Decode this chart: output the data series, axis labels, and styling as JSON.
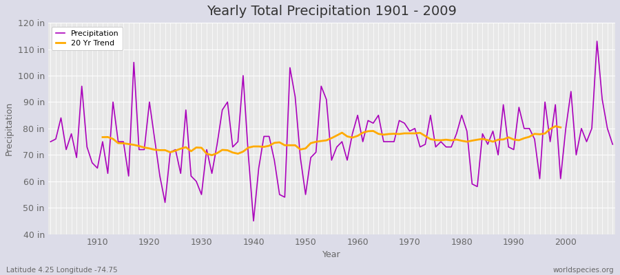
{
  "title": "Yearly Total Precipitation 1901 - 2009",
  "xlabel": "Year",
  "ylabel": "Precipitation",
  "subtitle": "Latitude 4.25 Longitude -74.75",
  "watermark": "worldspecies.org",
  "years": [
    1901,
    1902,
    1903,
    1904,
    1905,
    1906,
    1907,
    1908,
    1909,
    1910,
    1911,
    1912,
    1913,
    1914,
    1915,
    1916,
    1917,
    1918,
    1919,
    1920,
    1921,
    1922,
    1923,
    1924,
    1925,
    1926,
    1927,
    1928,
    1929,
    1930,
    1931,
    1932,
    1933,
    1934,
    1935,
    1936,
    1937,
    1938,
    1939,
    1940,
    1941,
    1942,
    1943,
    1944,
    1945,
    1946,
    1947,
    1948,
    1949,
    1950,
    1951,
    1952,
    1953,
    1954,
    1955,
    1956,
    1957,
    1958,
    1959,
    1960,
    1961,
    1962,
    1963,
    1964,
    1965,
    1966,
    1967,
    1968,
    1969,
    1970,
    1971,
    1972,
    1973,
    1974,
    1975,
    1976,
    1977,
    1978,
    1979,
    1980,
    1981,
    1982,
    1983,
    1984,
    1985,
    1986,
    1987,
    1988,
    1989,
    1990,
    1991,
    1992,
    1993,
    1994,
    1995,
    1996,
    1997,
    1998,
    1999,
    2000,
    2001,
    2002,
    2003,
    2004,
    2005,
    2006,
    2007,
    2008,
    2009
  ],
  "precip": [
    75,
    76,
    84,
    72,
    78,
    69,
    96,
    73,
    67,
    65,
    75,
    63,
    90,
    75,
    75,
    62,
    105,
    72,
    72,
    90,
    76,
    62,
    52,
    71,
    72,
    63,
    87,
    62,
    60,
    55,
    72,
    63,
    74,
    87,
    90,
    73,
    75,
    100,
    70,
    45,
    65,
    77,
    77,
    68,
    55,
    54,
    103,
    92,
    69,
    55,
    69,
    71,
    96,
    91,
    68,
    73,
    75,
    68,
    78,
    85,
    75,
    83,
    82,
    85,
    75,
    75,
    75,
    83,
    82,
    79,
    80,
    73,
    74,
    85,
    73,
    75,
    73,
    73,
    78,
    85,
    79,
    59,
    58,
    78,
    74,
    79,
    70,
    89,
    73,
    72,
    88,
    80,
    80,
    76,
    61,
    90,
    75,
    89,
    61,
    80,
    94,
    70,
    80,
    75,
    80,
    113,
    91,
    80,
    74
  ],
  "precip_color": "#aa00bb",
  "trend_color": "#ffaa00",
  "bg_color": "#dcdce8",
  "plot_bg_color": "#e8e8e8",
  "grid_color": "#ffffff",
  "ylim": [
    40,
    120
  ],
  "ytick_step": 10,
  "xticks": [
    1910,
    1920,
    1930,
    1940,
    1950,
    1960,
    1970,
    1980,
    1990,
    2000
  ],
  "trend_window": 20,
  "title_fontsize": 14,
  "label_fontsize": 9,
  "axis_label_fontsize": 9,
  "tick_color": "#666666",
  "text_color": "#333333"
}
